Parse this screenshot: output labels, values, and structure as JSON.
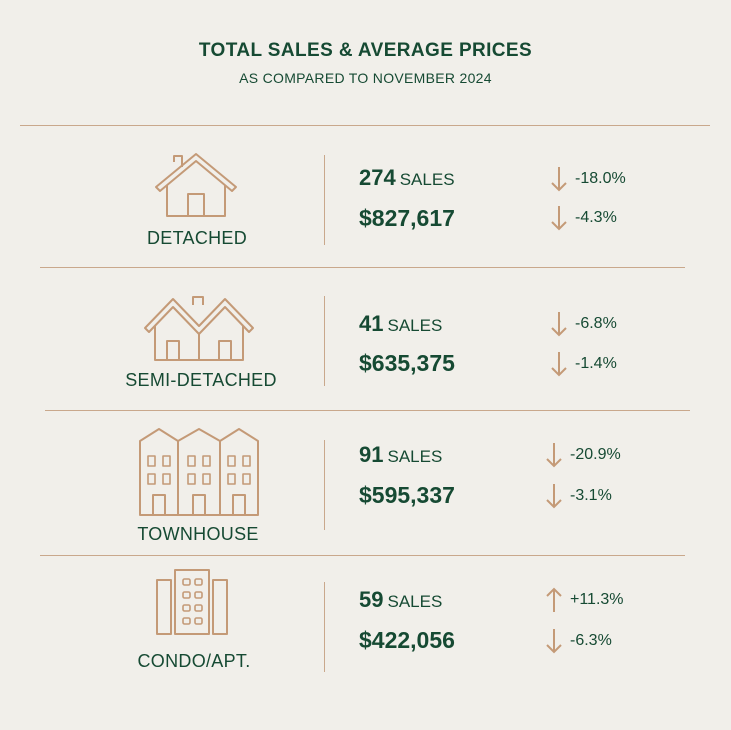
{
  "header": {
    "title": "TOTAL SALES & AVERAGE PRICES",
    "subtitle": "AS COMPARED TO NOVEMBER 2024"
  },
  "colors": {
    "background": "#f1efea",
    "text": "#164a33",
    "accent": "#c49a77"
  },
  "categories": [
    {
      "label": "DETACHED",
      "icon": "detached-house-icon",
      "sales": "274",
      "sales_unit": "SALES",
      "sales_change": "-18.0%",
      "sales_direction": "down",
      "price": "$827,617",
      "price_change": "-4.3%",
      "price_direction": "down"
    },
    {
      "label": "SEMI-DETACHED",
      "icon": "semi-detached-house-icon",
      "sales": "41",
      "sales_unit": "SALES",
      "sales_change": "-6.8%",
      "sales_direction": "down",
      "price": "$635,375",
      "price_change": "-1.4%",
      "price_direction": "down"
    },
    {
      "label": "TOWNHOUSE",
      "icon": "townhouse-icon",
      "sales": "91",
      "sales_unit": "SALES",
      "sales_change": "-20.9%",
      "sales_direction": "down",
      "price": "$595,337",
      "price_change": "-3.1%",
      "price_direction": "down"
    },
    {
      "label": "CONDO/APT.",
      "icon": "condo-building-icon",
      "sales": "59",
      "sales_unit": "SALES",
      "sales_change": "+11.3%",
      "sales_direction": "up",
      "price": "$422,056",
      "price_change": "-6.3%",
      "price_direction": "down"
    }
  ]
}
